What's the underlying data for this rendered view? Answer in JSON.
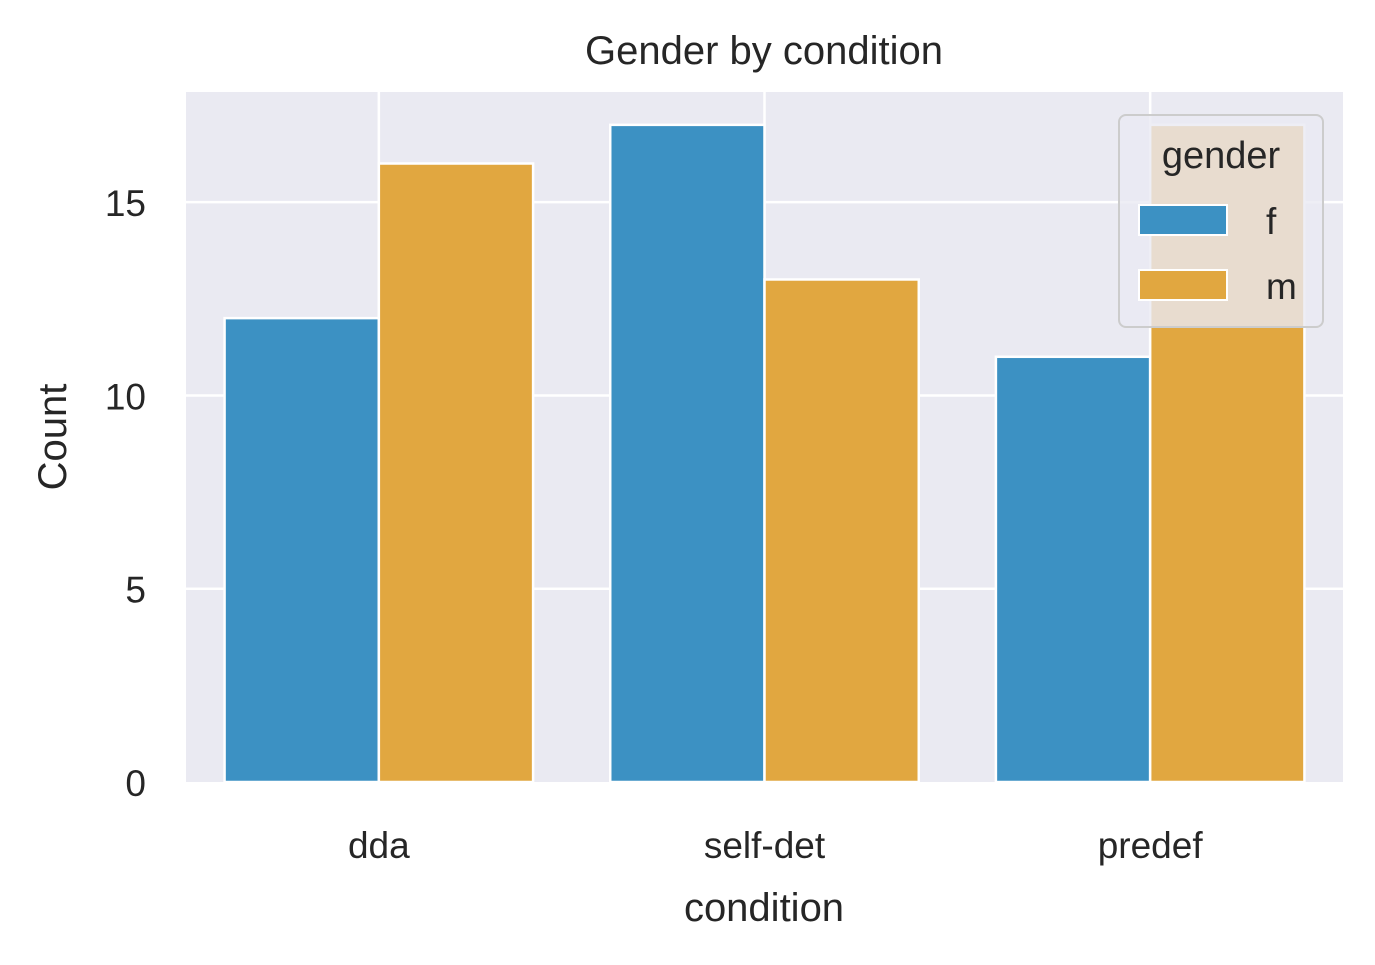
{
  "chart_data": {
    "type": "bar",
    "title": "Gender by condition",
    "xlabel": "condition",
    "ylabel": "Count",
    "categories": [
      "dda",
      "self-det",
      "predef"
    ],
    "series": [
      {
        "name": "f",
        "values": [
          12,
          17,
          11
        ],
        "color": "#3C91C3"
      },
      {
        "name": "m",
        "values": [
          16,
          13,
          17
        ],
        "color": "#E1A740"
      }
    ],
    "ylim": [
      0,
      17.85
    ],
    "yticks": [
      0,
      5,
      10,
      15
    ],
    "ytick_labels": [
      "0",
      "5",
      "10",
      "15"
    ],
    "legend": {
      "title": "gender",
      "placement": "top-right"
    },
    "grid": true,
    "background": "#EAEAF2"
  }
}
